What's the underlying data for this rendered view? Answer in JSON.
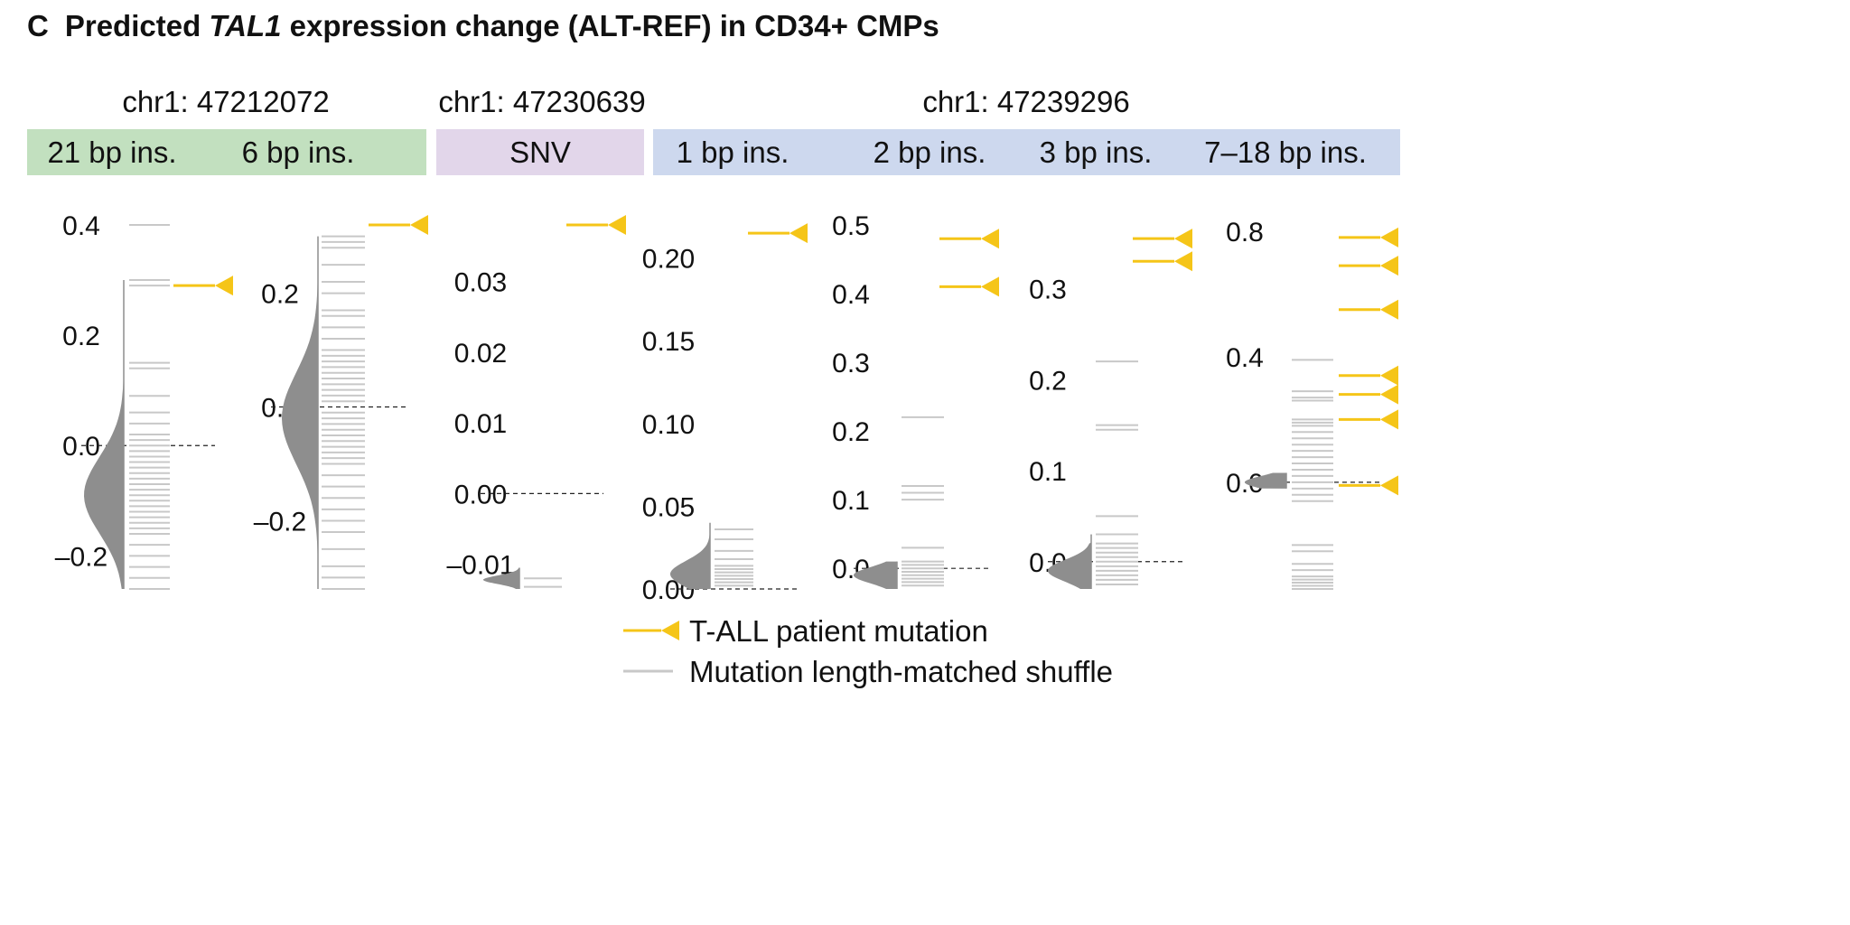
{
  "title": {
    "panel_letter": "C",
    "prefix": "Predicted ",
    "gene": "TAL1",
    "suffix": " expression change (ALT-REF) in CD34+ CMPs"
  },
  "colors": {
    "patient": "#f5c518",
    "shuffle_line": "#c8c8c8",
    "violin": "#8e8e8e",
    "band_green": "#c2e0bf",
    "band_purple": "#e2d6ea",
    "band_blue": "#cdd8ee"
  },
  "legend": {
    "patient_label": "T-ALL patient mutation",
    "shuffle_label": "Mutation length-matched shuffle"
  },
  "loci": [
    {
      "label": "chr1: 47212072",
      "color_key": "band_green",
      "groups": [
        "21 bp ins.",
        "6 bp ins."
      ]
    },
    {
      "label": "chr1: 47230639",
      "color_key": "band_purple",
      "groups": [
        "SNV"
      ]
    },
    {
      "label": "chr1: 47239296",
      "color_key": "band_blue",
      "groups": [
        "1 bp ins.",
        "2 bp ins.",
        "3 bp ins.",
        "7–18 bp ins."
      ]
    }
  ],
  "chart_data": [
    {
      "type": "violin",
      "group": "21 bp ins.",
      "ylim": [
        -0.26,
        0.4
      ],
      "yticks": [
        {
          "v": 0.4,
          "label": "0.4"
        },
        {
          "v": 0.2,
          "label": "0.2"
        },
        {
          "v": 0.0,
          "label": "0.0"
        },
        {
          "v": -0.2,
          "label": "–0.2"
        }
      ],
      "violin": {
        "center": -0.09,
        "width": 0.07,
        "max": 0.3,
        "min": -0.26,
        "tail_top": 0.3
      },
      "shuffle": [
        0.4,
        0.3,
        0.29,
        0.15,
        0.14,
        0.09,
        0.06,
        0.04,
        0.02,
        0.01,
        0.0,
        -0.01,
        -0.02,
        -0.03,
        -0.04,
        -0.05,
        -0.06,
        -0.07,
        -0.08,
        -0.09,
        -0.1,
        -0.11,
        -0.12,
        -0.13,
        -0.14,
        -0.15,
        -0.16,
        -0.18,
        -0.2,
        -0.22,
        -0.24,
        -0.26
      ],
      "patient": [
        0.29
      ]
    },
    {
      "type": "violin",
      "group": "6 bp ins.",
      "ylim": [
        -0.32,
        0.32
      ],
      "yticks": [
        {
          "v": 0.2,
          "label": "0.2"
        },
        {
          "v": 0.0,
          "label": "0.0"
        },
        {
          "v": -0.2,
          "label": "–0.2"
        }
      ],
      "violin": {
        "center": -0.02,
        "width": 0.08,
        "max": 0.3,
        "min": -0.32,
        "tail_top": 0.3
      },
      "shuffle": [
        0.3,
        0.29,
        0.28,
        0.25,
        0.22,
        0.2,
        0.17,
        0.16,
        0.14,
        0.12,
        0.1,
        0.09,
        0.08,
        0.07,
        0.06,
        0.05,
        0.04,
        0.03,
        0.02,
        0.01,
        -0.01,
        -0.02,
        -0.03,
        -0.04,
        -0.05,
        -0.06,
        -0.07,
        -0.08,
        -0.09,
        -0.1,
        -0.12,
        -0.14,
        -0.16,
        -0.18,
        -0.2,
        -0.22,
        -0.25,
        -0.28,
        -0.3,
        -0.32
      ],
      "patient": [
        0.32
      ]
    },
    {
      "type": "violin",
      "group": "SNV",
      "ylim": [
        -0.0135,
        0.038
      ],
      "yticks": [
        {
          "v": 0.03,
          "label": "0.03"
        },
        {
          "v": 0.02,
          "label": "0.02"
        },
        {
          "v": 0.01,
          "label": "0.01"
        },
        {
          "v": 0.0,
          "label": "0.00"
        },
        {
          "v": -0.01,
          "label": "–0.01"
        }
      ],
      "violin": {
        "center": -0.0122,
        "width": 0.0006,
        "max": -0.0105,
        "min": -0.0135,
        "tail_top": -0.0105
      },
      "shuffle": [
        -0.012,
        -0.0132
      ],
      "patient": [
        0.038
      ]
    },
    {
      "type": "violin",
      "group": "1 bp ins.",
      "ylim": [
        0.0,
        0.22
      ],
      "yticks": [
        {
          "v": 0.2,
          "label": "0.20"
        },
        {
          "v": 0.15,
          "label": "0.15"
        },
        {
          "v": 0.1,
          "label": "0.10"
        },
        {
          "v": 0.05,
          "label": "0.05"
        },
        {
          "v": 0.0,
          "label": "0.00"
        }
      ],
      "violin": {
        "center": 0.009,
        "width": 0.008,
        "max": 0.04,
        "min": 0.0,
        "tail_top": 0.04
      },
      "shuffle": [
        0.036,
        0.03,
        0.023,
        0.018,
        0.014,
        0.012,
        0.01,
        0.008,
        0.006,
        0.004,
        0.002
      ],
      "patient": [
        0.215
      ]
    },
    {
      "type": "violin",
      "group": "2 bp ins.",
      "ylim": [
        -0.03,
        0.5
      ],
      "yticks": [
        {
          "v": 0.5,
          "label": "0.5"
        },
        {
          "v": 0.4,
          "label": "0.4"
        },
        {
          "v": 0.3,
          "label": "0.3"
        },
        {
          "v": 0.2,
          "label": "0.2"
        },
        {
          "v": 0.1,
          "label": "0.1"
        },
        {
          "v": 0.0,
          "label": "0.0"
        }
      ],
      "violin": {
        "center": -0.01,
        "width": 0.012,
        "max": 0.01,
        "min": -0.03,
        "tail_top": 0.01
      },
      "shuffle": [
        0.22,
        0.12,
        0.11,
        0.1,
        0.03,
        0.01,
        0.005,
        0.0,
        -0.005,
        -0.01,
        -0.015,
        -0.02,
        -0.025
      ],
      "patient": [
        0.48,
        0.41
      ]
    },
    {
      "type": "violin",
      "group": "3 bp ins.",
      "ylim": [
        -0.03,
        0.37
      ],
      "yticks": [
        {
          "v": 0.3,
          "label": "0.3"
        },
        {
          "v": 0.2,
          "label": "0.2"
        },
        {
          "v": 0.1,
          "label": "0.1"
        },
        {
          "v": 0.0,
          "label": "0.0"
        }
      ],
      "violin": {
        "center": -0.01,
        "width": 0.012,
        "max": 0.02,
        "min": -0.03,
        "tail_top": 0.03
      },
      "shuffle": [
        0.22,
        0.15,
        0.145,
        0.05,
        0.03,
        0.02,
        0.015,
        0.01,
        0.005,
        0.0,
        -0.005,
        -0.01,
        -0.015,
        -0.02,
        -0.025
      ],
      "patient": [
        0.355,
        0.33
      ]
    },
    {
      "type": "violin",
      "group": "7–18 bp ins.",
      "ylim": [
        -0.34,
        0.82
      ],
      "yticks": [
        {
          "v": 0.8,
          "label": "0.8"
        },
        {
          "v": 0.4,
          "label": "0.4"
        },
        {
          "v": 0.0,
          "label": "0.0"
        }
      ],
      "violin": {
        "center": 0.0,
        "width": 0.02,
        "max": 0.03,
        "min": -0.02,
        "tail_top": 0.03
      },
      "shuffle": [
        0.39,
        0.29,
        0.27,
        0.26,
        0.2,
        0.19,
        0.18,
        0.16,
        0.14,
        0.12,
        0.1,
        0.08,
        0.06,
        0.04,
        0.02,
        0.0,
        -0.02,
        -0.04,
        -0.06,
        -0.2,
        -0.22,
        -0.26,
        -0.28,
        -0.3,
        -0.31,
        -0.32,
        -0.33,
        -0.34
      ],
      "patient": [
        0.78,
        0.69,
        0.55,
        0.34,
        0.28,
        0.2,
        -0.01
      ]
    }
  ]
}
